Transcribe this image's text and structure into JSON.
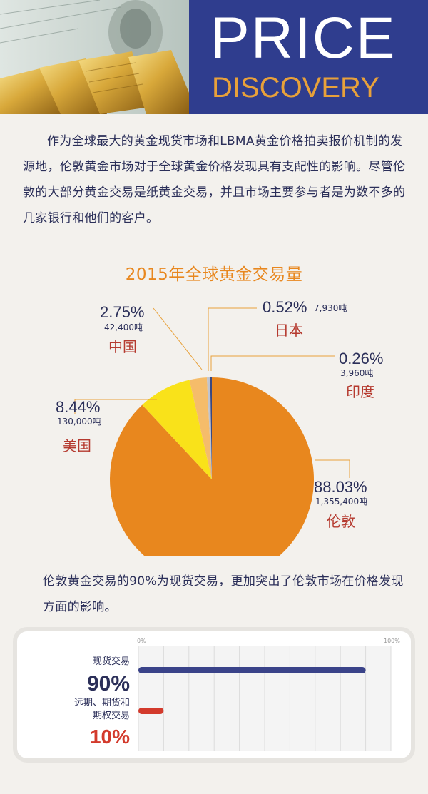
{
  "header": {
    "title_line1": "PRICE",
    "title_line2": "DISCOVERY",
    "banner_color": "#2f3d8e",
    "title2_color": "#e8a13a"
  },
  "intro": {
    "text": "作为全球最大的黄金现货市场和LBMA黄金价格拍卖报价机制的发源地，伦敦黄金市场对于全球黄金价格发现具有支配性的影响。尽管伦敦的大部分黄金交易是纸黄金交易，并且市场主要参与者是为数不多的几家银行和他们的客户。"
  },
  "note": {
    "text": "伦敦黄金交易的90%为现货交易，更加突出了伦敦市场在价格发现方面的影响。"
  },
  "chart_data": [
    {
      "type": "pie",
      "title": "2015年全球黄金交易量",
      "slices": [
        {
          "label": "伦敦",
          "percent": 88.03,
          "percent_text": "88.03%",
          "volume_text": "1,355,400吨",
          "color": "#e8871e"
        },
        {
          "label": "美国",
          "percent": 8.44,
          "percent_text": "8.44%",
          "volume_text": "130,000吨",
          "color": "#f9e21a"
        },
        {
          "label": "中国",
          "percent": 2.75,
          "percent_text": "2.75%",
          "volume_text": "42,400吨",
          "color": "#f5bc6a"
        },
        {
          "label": "日本",
          "percent": 0.52,
          "percent_text": "0.52%",
          "volume_text": "7,930吨",
          "color": "#c0c4cf"
        },
        {
          "label": "印度",
          "percent": 0.26,
          "percent_text": "0.26%",
          "volume_text": "3,960吨",
          "color": "#3a4780"
        }
      ]
    },
    {
      "type": "bar",
      "orientation": "horizontal",
      "categories": [
        "现货交易",
        "远期、期货和期权交易"
      ],
      "values": [
        90,
        10
      ],
      "value_labels": [
        "90%",
        "10%"
      ],
      "colors": [
        "#3a4389",
        "#d33a2c"
      ],
      "xlim": [
        0,
        100
      ],
      "tick_labels": [
        "0%",
        "100%"
      ],
      "grid": true
    }
  ]
}
